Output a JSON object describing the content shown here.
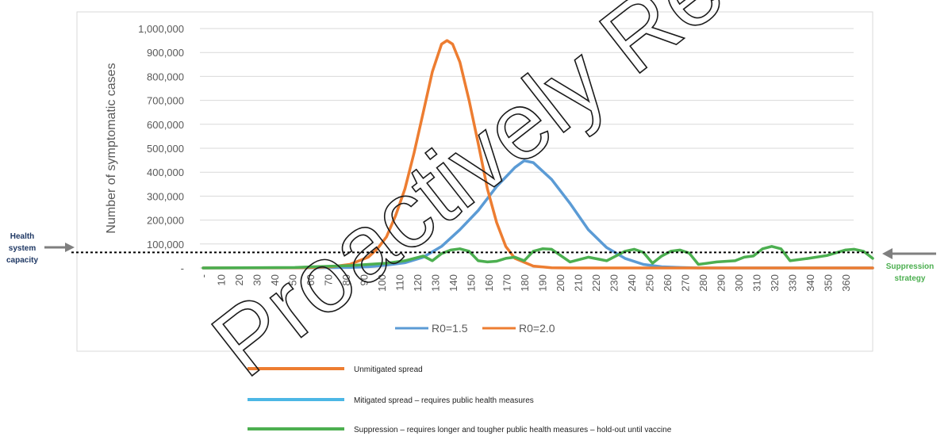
{
  "chart_data": {
    "type": "line",
    "title": "",
    "xlabel": "",
    "ylabel": "Number of symptomatic cases",
    "x_tick_labels": [
      "-",
      "10",
      "20",
      "30",
      "40",
      "50",
      "60",
      "70",
      "80",
      "90",
      "100",
      "110",
      "120",
      "130",
      "140",
      "150",
      "160",
      "170",
      "180",
      "190",
      "200",
      "210",
      "220",
      "230",
      "240",
      "250",
      "260",
      "270",
      "280",
      "290",
      "300",
      "310",
      "320",
      "330",
      "340",
      "350",
      "360"
    ],
    "x_range": [
      0,
      365
    ],
    "y_tick_labels": [
      "-",
      "100,000",
      "200,000",
      "300,000",
      "400,000",
      "500,000",
      "600,000",
      "700,000",
      "800,000",
      "900,000",
      "1,000,000"
    ],
    "ylim": [
      0,
      1000000
    ],
    "grid": "horizontal",
    "legend_position": "bottom",
    "series": [
      {
        "name": "R0=1.5",
        "color": "#5b9bd5",
        "x": [
          0,
          60,
          80,
          90,
          100,
          110,
          120,
          130,
          140,
          150,
          160,
          170,
          175,
          180,
          190,
          200,
          210,
          220,
          230,
          240,
          250,
          260,
          270,
          300,
          365
        ],
        "values": [
          0,
          500,
          2000,
          5000,
          12000,
          22000,
          45000,
          90000,
          160000,
          240000,
          340000,
          420000,
          448000,
          440000,
          370000,
          270000,
          160000,
          85000,
          40000,
          15000,
          5000,
          2000,
          0,
          0,
          0
        ]
      },
      {
        "name": "R0=2.0",
        "color": "#ed7d31",
        "x": [
          0,
          50,
          60,
          70,
          80,
          90,
          95,
          100,
          105,
          110,
          115,
          120,
          125,
          130,
          133,
          136,
          140,
          145,
          150,
          155,
          160,
          165,
          170,
          180,
          190,
          200,
          365
        ],
        "values": [
          0,
          500,
          2000,
          5000,
          15000,
          45000,
          80000,
          130000,
          220000,
          330000,
          480000,
          650000,
          820000,
          935000,
          950000,
          935000,
          860000,
          700000,
          520000,
          330000,
          190000,
          90000,
          40000,
          8000,
          1000,
          0,
          0
        ]
      },
      {
        "name": "Suppression",
        "color": "#4caf50",
        "x": [
          0,
          50,
          60,
          80,
          90,
          100,
          110,
          120,
          125,
          130,
          135,
          140,
          145,
          150,
          155,
          160,
          165,
          170,
          175,
          180,
          185,
          190,
          200,
          210,
          220,
          230,
          235,
          240,
          245,
          250,
          255,
          260,
          265,
          270,
          280,
          290,
          295,
          300,
          305,
          310,
          315,
          320,
          330,
          340,
          350,
          355,
          360,
          365
        ],
        "values": [
          0,
          2000,
          5000,
          10000,
          15000,
          20000,
          30000,
          50000,
          30000,
          60000,
          75000,
          80000,
          70000,
          30000,
          25000,
          28000,
          40000,
          45000,
          30000,
          70000,
          80000,
          78000,
          25000,
          45000,
          30000,
          70000,
          78000,
          65000,
          20000,
          50000,
          70000,
          75000,
          62000,
          15000,
          25000,
          30000,
          45000,
          50000,
          80000,
          90000,
          80000,
          30000,
          40000,
          52000,
          75000,
          78000,
          70000,
          40000
        ]
      }
    ],
    "capacity_line": {
      "value": 65000,
      "style": "dotted"
    }
  },
  "legend_items": [
    "R0=1.5",
    "R0=2.0"
  ],
  "side_labels": {
    "left": [
      "Health",
      "system",
      "capacity"
    ],
    "right": [
      "Suppression",
      "strategy"
    ]
  },
  "bottom_legend": [
    {
      "color": "#ed7d31",
      "text": "Unmitigated spread"
    },
    {
      "color": "#4cb7e5",
      "text": "Mitigated spread – requires public health measures"
    },
    {
      "color": "#4caf50",
      "text": "Suppression – requires longer and tougher public health measures – hold-out until vaccine"
    }
  ],
  "watermark": "Proactively Released",
  "colors": {
    "left_label": "#1f3864",
    "right_label": "#4caf50",
    "arrow": "#7f7f7f",
    "grid": "#d9d9d9"
  }
}
